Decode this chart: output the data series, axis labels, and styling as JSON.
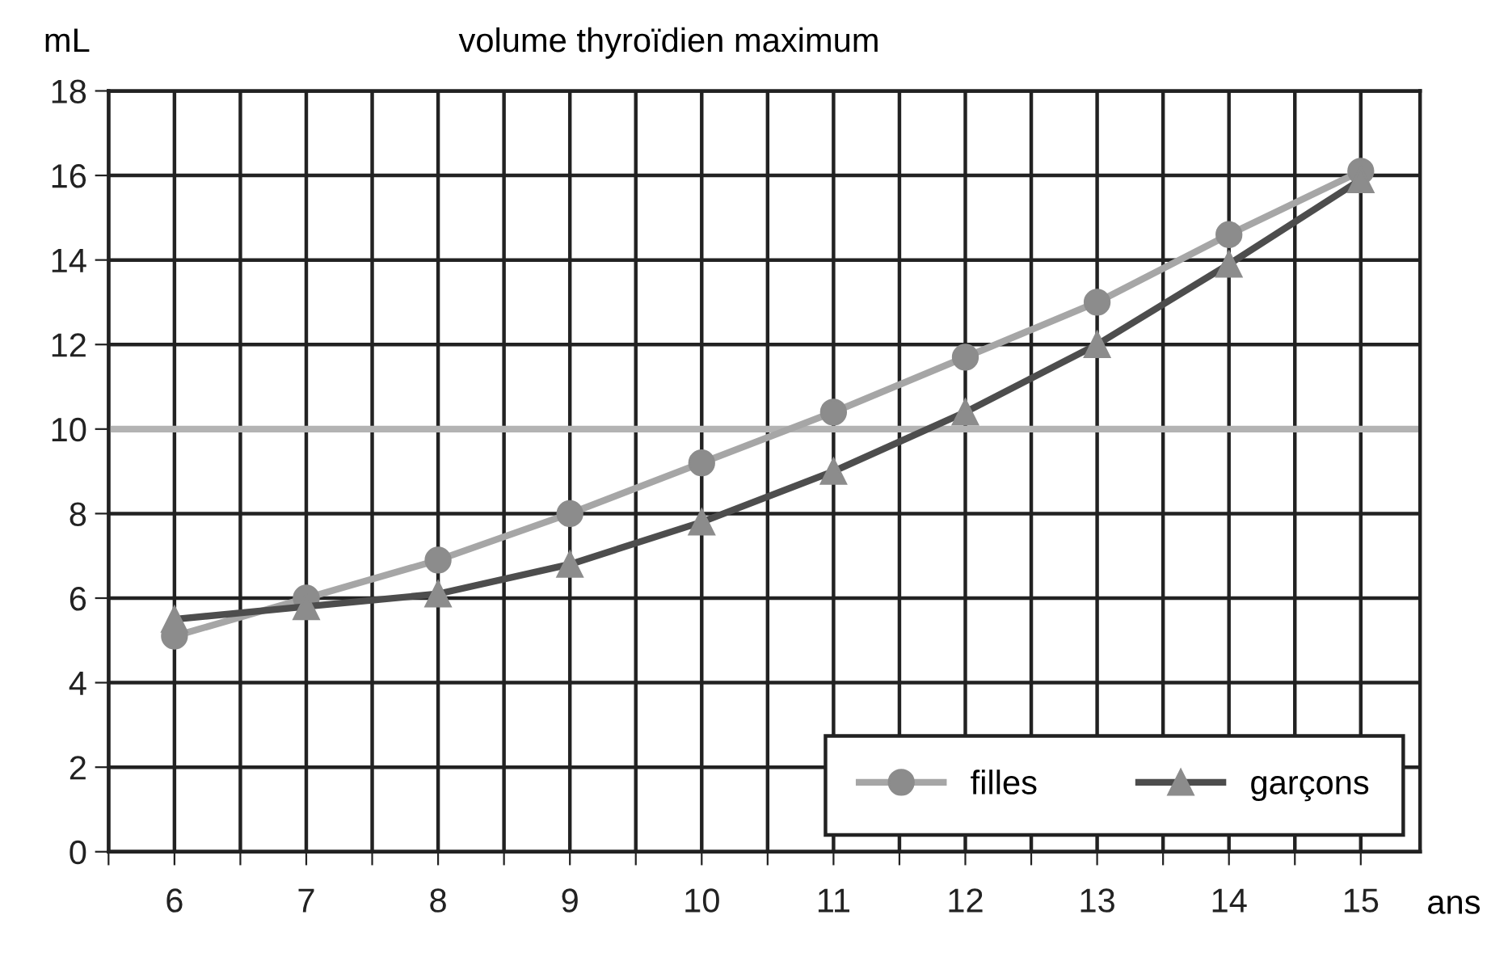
{
  "chart_data": {
    "type": "line",
    "title": "volume thyroïdien maximum",
    "xlabel": "ans",
    "ylabel": "mL",
    "x": [
      6,
      7,
      8,
      9,
      10,
      11,
      12,
      13,
      14,
      15
    ],
    "series": [
      {
        "name": "filles",
        "color": "#a6a6a6",
        "marker": "circle",
        "values": [
          5.1,
          6.0,
          6.9,
          8.0,
          9.2,
          10.4,
          11.7,
          13.0,
          14.6,
          16.1
        ]
      },
      {
        "name": "garçons",
        "color": "#4d4d4d",
        "marker": "triangle",
        "values": [
          5.5,
          5.8,
          6.1,
          6.8,
          7.8,
          9.0,
          10.4,
          12.0,
          13.9,
          15.9
        ]
      }
    ],
    "xlim": [
      5.5,
      15.45
    ],
    "xticks": [
      {
        "value": 5.5,
        "label": null
      },
      6,
      {
        "value": 6.5,
        "label": null
      },
      7,
      {
        "value": 7.5,
        "label": null
      },
      8,
      {
        "value": 8.5,
        "label": null
      },
      9,
      {
        "value": 9.5,
        "label": null
      },
      10,
      {
        "value": 10.5,
        "label": null
      },
      11,
      {
        "value": 11.5,
        "label": null
      },
      12,
      {
        "value": 12.5,
        "label": null
      },
      13,
      {
        "value": 13.5,
        "label": null
      },
      14,
      {
        "value": 14.5,
        "label": null
      },
      15
    ],
    "ylim": [
      0,
      18
    ],
    "yticks": [
      0,
      2,
      4,
      6,
      8,
      10,
      12,
      14,
      16,
      18
    ],
    "ref_lines": [
      {
        "axis": "y",
        "value": 10,
        "color": "#b3b3b3"
      }
    ],
    "grid": true,
    "legend": "bottom right",
    "line_style": "solid"
  }
}
